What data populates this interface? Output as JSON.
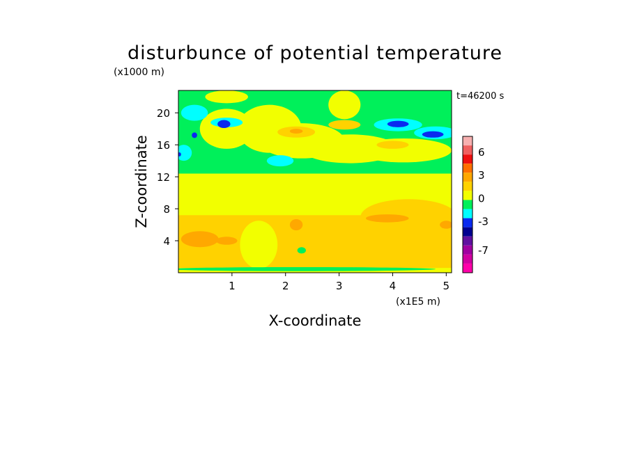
{
  "chart_data": {
    "type": "heatmap",
    "title": "disturbunce of potential temperature",
    "xlabel": "X-coordinate",
    "ylabel": "Z-coordinate",
    "x_unit": "(x1E5 m)",
    "y_unit": "(x1000 m)",
    "time_label": "t=46200 s",
    "xlim": [
      0,
      5.1
    ],
    "ylim": [
      0,
      22.8
    ],
    "x_ticks": [
      "1",
      "2",
      "3",
      "4",
      "5"
    ],
    "x_tick_values": [
      1,
      2,
      3,
      4,
      5
    ],
    "y_ticks": [
      "4",
      "8",
      "12",
      "16",
      "20"
    ],
    "y_tick_values": [
      4,
      8,
      12,
      16,
      20
    ],
    "colorbar": {
      "levels": [
        {
          "color": "#f7b0b0"
        },
        {
          "color": "#ef6060"
        },
        {
          "color": "#ee1010"
        },
        {
          "color": "#ff6f00"
        },
        {
          "color": "#ffa800"
        },
        {
          "color": "#ffd200"
        },
        {
          "color": "#f2ff00"
        },
        {
          "color": "#00f05a"
        },
        {
          "color": "#00ffff"
        },
        {
          "color": "#0a2af0"
        },
        {
          "color": "#000090"
        },
        {
          "color": "#6010a0"
        },
        {
          "color": "#a000a0"
        },
        {
          "color": "#d000a0"
        },
        {
          "color": "#ff00aa"
        }
      ],
      "tick_labels": [
        "6",
        "3",
        "0",
        "-3",
        "-7"
      ]
    },
    "background_level_color": "#f2ff00",
    "regions": [
      {
        "color": "#00f05a",
        "shape": "rect",
        "x": [
          0,
          5.1
        ],
        "y": [
          12.4,
          22.8
        ]
      },
      {
        "color": "#ffd200",
        "shape": "rect",
        "x": [
          0,
          5.1
        ],
        "y": [
          0.6,
          7.2
        ]
      },
      {
        "color": "#ffd200",
        "shape": "ellipse",
        "center": [
          4.3,
          7.0
        ],
        "radius": [
          0.9,
          2.2
        ]
      },
      {
        "color": "#ffa800",
        "shape": "ellipse",
        "center": [
          0.4,
          4.2
        ],
        "radius": [
          0.35,
          1.0
        ]
      },
      {
        "color": "#ffa800",
        "shape": "ellipse",
        "center": [
          0.9,
          4.0
        ],
        "radius": [
          0.2,
          0.5
        ]
      },
      {
        "color": "#ffa800",
        "shape": "ellipse",
        "center": [
          2.2,
          6.0
        ],
        "radius": [
          0.12,
          0.7
        ]
      },
      {
        "color": "#ffa800",
        "shape": "ellipse",
        "center": [
          3.9,
          6.8
        ],
        "radius": [
          0.4,
          0.5
        ]
      },
      {
        "color": "#ffa800",
        "shape": "ellipse",
        "center": [
          5.0,
          6.0
        ],
        "radius": [
          0.12,
          0.5
        ]
      },
      {
        "color": "#f2ff00",
        "shape": "ellipse",
        "center": [
          1.5,
          3.5
        ],
        "radius": [
          0.35,
          3.0
        ]
      },
      {
        "color": "#f2ff00",
        "shape": "ellipse",
        "center": [
          1.3,
          9.7
        ],
        "radius": [
          1.3,
          1.1
        ]
      },
      {
        "color": "#f2ff00",
        "shape": "ellipse",
        "center": [
          0.9,
          18.0
        ],
        "radius": [
          0.5,
          2.5
        ]
      },
      {
        "color": "#f2ff00",
        "shape": "ellipse",
        "center": [
          1.7,
          18.0
        ],
        "radius": [
          0.6,
          3.0
        ]
      },
      {
        "color": "#f2ff00",
        "shape": "ellipse",
        "center": [
          2.3,
          16.5
        ],
        "radius": [
          0.8,
          2.2
        ]
      },
      {
        "color": "#f2ff00",
        "shape": "ellipse",
        "center": [
          3.2,
          15.5
        ],
        "radius": [
          0.9,
          1.8
        ]
      },
      {
        "color": "#f2ff00",
        "shape": "ellipse",
        "center": [
          4.2,
          15.3
        ],
        "radius": [
          0.9,
          1.5
        ]
      },
      {
        "color": "#f2ff00",
        "shape": "ellipse",
        "center": [
          3.1,
          21.0
        ],
        "radius": [
          0.3,
          1.8
        ]
      },
      {
        "color": "#f2ff00",
        "shape": "ellipse",
        "center": [
          0.9,
          22.0
        ],
        "radius": [
          0.4,
          0.8
        ]
      },
      {
        "color": "#ffd200",
        "shape": "ellipse",
        "center": [
          2.2,
          17.6
        ],
        "radius": [
          0.35,
          0.7
        ]
      },
      {
        "color": "#ffd200",
        "shape": "ellipse",
        "center": [
          3.1,
          18.5
        ],
        "radius": [
          0.3,
          0.6
        ]
      },
      {
        "color": "#ffd200",
        "shape": "ellipse",
        "center": [
          4.0,
          16.0
        ],
        "radius": [
          0.3,
          0.5
        ]
      },
      {
        "color": "#ffa800",
        "shape": "ellipse",
        "center": [
          2.2,
          17.7
        ],
        "radius": [
          0.12,
          0.3
        ]
      },
      {
        "color": "#00ffff",
        "shape": "ellipse",
        "center": [
          0.3,
          20.0
        ],
        "radius": [
          0.25,
          1.0
        ]
      },
      {
        "color": "#00ffff",
        "shape": "ellipse",
        "center": [
          0.1,
          15.0
        ],
        "radius": [
          0.15,
          1.0
        ]
      },
      {
        "color": "#00ffff",
        "shape": "ellipse",
        "center": [
          0.9,
          18.8
        ],
        "radius": [
          0.3,
          0.6
        ]
      },
      {
        "color": "#00ffff",
        "shape": "ellipse",
        "center": [
          1.9,
          14.0
        ],
        "radius": [
          0.25,
          0.7
        ]
      },
      {
        "color": "#00ffff",
        "shape": "ellipse",
        "center": [
          4.1,
          18.5
        ],
        "radius": [
          0.45,
          0.8
        ]
      },
      {
        "color": "#00ffff",
        "shape": "ellipse",
        "center": [
          4.8,
          17.5
        ],
        "radius": [
          0.4,
          0.8
        ]
      },
      {
        "color": "#0a2af0",
        "shape": "ellipse",
        "center": [
          0.85,
          18.6
        ],
        "radius": [
          0.12,
          0.5
        ]
      },
      {
        "color": "#0a2af0",
        "shape": "ellipse",
        "center": [
          4.1,
          18.6
        ],
        "radius": [
          0.2,
          0.4
        ]
      },
      {
        "color": "#0a2af0",
        "shape": "ellipse",
        "center": [
          4.75,
          17.3
        ],
        "radius": [
          0.2,
          0.4
        ]
      },
      {
        "color": "#0a2af0",
        "shape": "ellipse",
        "center": [
          0.3,
          17.2
        ],
        "radius": [
          0.05,
          0.35
        ]
      },
      {
        "color": "#0a2af0",
        "shape": "ellipse",
        "center": [
          0.02,
          14.8
        ],
        "radius": [
          0.03,
          0.25
        ]
      },
      {
        "color": "#00f05a",
        "shape": "ellipse",
        "center": [
          2.3,
          0.45
        ],
        "radius": [
          2.5,
          0.25
        ]
      },
      {
        "color": "#00f05a",
        "shape": "ellipse",
        "center": [
          2.3,
          2.8
        ],
        "radius": [
          0.08,
          0.4
        ]
      }
    ]
  }
}
